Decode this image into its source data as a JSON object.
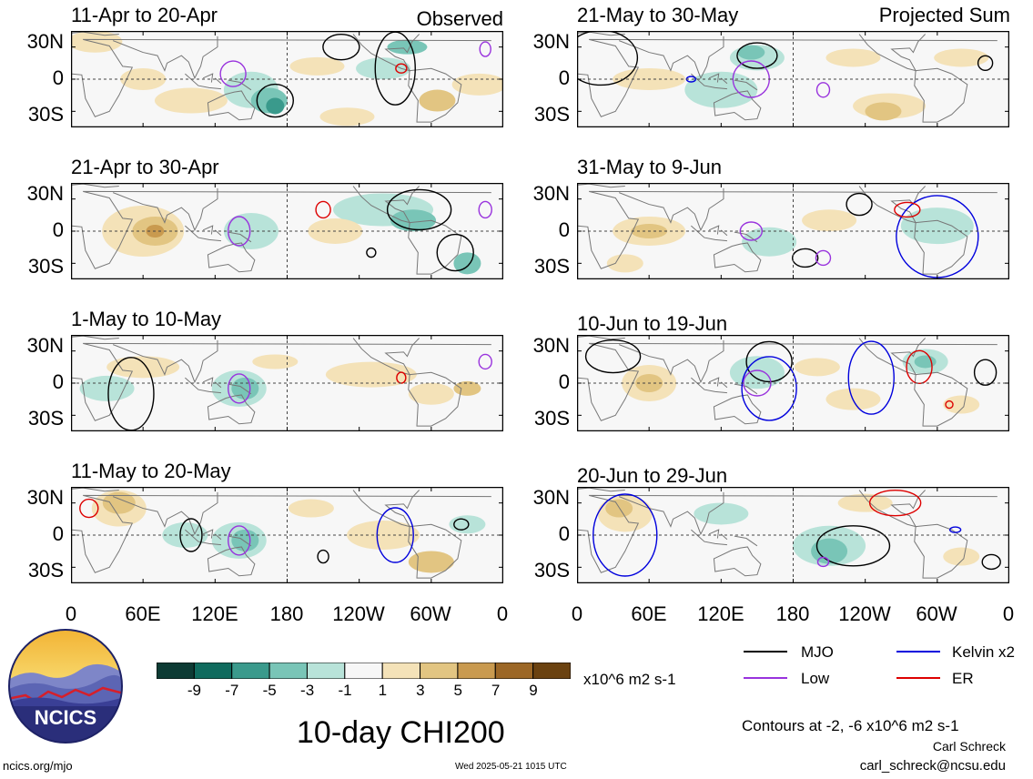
{
  "header": {
    "left_tag": "Observed",
    "right_tag": "Projected Sum"
  },
  "panels_left": [
    {
      "title": "11-Apr to 20-Apr"
    },
    {
      "title": "21-Apr to 30-Apr"
    },
    {
      "title": "1-May to 10-May"
    },
    {
      "title": "11-May to 20-May"
    }
  ],
  "panels_right": [
    {
      "title": "21-May to 30-May"
    },
    {
      "title": "31-May to 9-Jun"
    },
    {
      "title": "10-Jun to 19-Jun"
    },
    {
      "title": "20-Jun to 29-Jun"
    }
  ],
  "lat_labels": [
    "30N",
    "0",
    "30S"
  ],
  "lon_labels": [
    "0",
    "60E",
    "120E",
    "180",
    "120W",
    "60W",
    "0"
  ],
  "colorbar": {
    "ticks": [
      "-9",
      "-7",
      "-5",
      "-3",
      "-1",
      "1",
      "3",
      "5",
      "7",
      "9"
    ],
    "colors": [
      "#0d3b34",
      "#0f6b5e",
      "#3a9a8c",
      "#79c5b7",
      "#b8e3d9",
      "#f7f7f7",
      "#f4e2b8",
      "#e2c582",
      "#c99a4f",
      "#9c6726",
      "#6b4210"
    ],
    "units": "x10^6 m2 s-1"
  },
  "legend": {
    "items": [
      {
        "label": "MJO",
        "color": "#000000"
      },
      {
        "label": "Kelvin x2",
        "color": "#0000dd"
      },
      {
        "label": "Low",
        "color": "#9933dd"
      },
      {
        "label": "ER",
        "color": "#dd0000"
      }
    ],
    "contours_note": "Contours at -2, -6 x10^6 m2 s-1"
  },
  "logo": {
    "text": "NCICS"
  },
  "footer": {
    "title": "10-day CHI200",
    "url": "ncics.org/mjo",
    "timestamp": "Wed 2025-05-21 1015 UTC",
    "author": "Carl Schreck",
    "email": "carl_schreck@ncsu.edu"
  }
}
